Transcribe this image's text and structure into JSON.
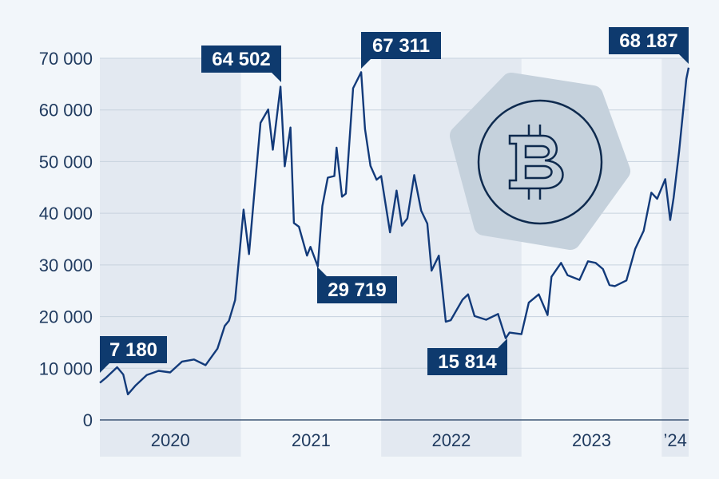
{
  "chart_data": {
    "type": "line",
    "title": "",
    "xlabel": "",
    "ylabel": "",
    "ylim": [
      0,
      70000
    ],
    "yticks": [
      0,
      10000,
      20000,
      30000,
      40000,
      50000,
      60000,
      70000
    ],
    "ytick_labels": [
      "0",
      "10 000",
      "20 000",
      "30 000",
      "40 000",
      "50 000",
      "60 000",
      "70 000"
    ],
    "xlim": [
      "2019-12-31",
      "2024-03-11"
    ],
    "year_labels": [
      "2020",
      "2021",
      "2022",
      "2023",
      "’24"
    ],
    "grid": true,
    "alternating_year_shading": true,
    "colors": {
      "line": "#123a7a",
      "callout": "#0e3a6e",
      "shade": "#e3e9f1",
      "gridline": "#c7d2de",
      "text": "#1f3a5f",
      "badge": "#c5d1dc"
    },
    "series": [
      {
        "x": [
          "2019-12-31",
          "2020-01-15",
          "2020-02-14",
          "2020-03-01",
          "2020-03-13",
          "2020-04-01",
          "2020-05-01",
          "2020-06-01",
          "2020-07-01",
          "2020-08-01",
          "2020-09-01",
          "2020-10-01",
          "2020-11-01",
          "2020-11-20",
          "2020-12-01",
          "2020-12-17",
          "2021-01-08",
          "2021-01-22",
          "2021-02-08",
          "2021-02-21",
          "2021-03-13",
          "2021-03-25",
          "2021-04-14",
          "2021-04-25",
          "2021-05-10",
          "2021-05-19",
          "2021-06-01",
          "2021-06-22",
          "2021-07-01",
          "2021-07-20",
          "2021-08-01",
          "2021-08-15",
          "2021-09-01",
          "2021-09-07",
          "2021-09-21",
          "2021-10-01",
          "2021-10-20",
          "2021-11-10",
          "2021-11-20",
          "2021-12-04",
          "2021-12-20",
          "2022-01-01",
          "2022-01-24",
          "2022-02-10",
          "2022-02-24",
          "2022-03-10",
          "2022-03-28",
          "2022-04-15",
          "2022-05-01",
          "2022-05-12",
          "2022-05-31",
          "2022-06-18",
          "2022-07-01",
          "2022-08-01",
          "2022-08-15",
          "2022-09-01",
          "2022-10-01",
          "2022-11-01",
          "2022-11-21",
          "2022-12-01",
          "2023-01-01",
          "2023-01-20",
          "2023-02-15",
          "2023-03-10",
          "2023-03-20",
          "2023-04-14",
          "2023-05-01",
          "2023-06-01",
          "2023-06-23",
          "2023-07-13",
          "2023-08-01",
          "2023-08-18",
          "2023-09-01",
          "2023-10-01",
          "2023-10-24",
          "2023-11-15",
          "2023-12-05",
          "2023-12-20",
          "2024-01-10",
          "2024-01-23",
          "2024-02-01",
          "2024-02-15",
          "2024-02-28",
          "2024-03-05",
          "2024-03-11"
        ],
        "y": [
          7180,
          8100,
          10200,
          8800,
          4950,
          6600,
          8700,
          9500,
          9200,
          11300,
          11700,
          10600,
          13800,
          18200,
          19200,
          23200,
          40700,
          32100,
          46500,
          57500,
          60100,
          52300,
          64502,
          49100,
          56600,
          38100,
          37400,
          31800,
          33500,
          29719,
          41400,
          46900,
          47200,
          52700,
          43200,
          43800,
          64200,
          67311,
          56300,
          49200,
          46500,
          47200,
          36300,
          44400,
          37600,
          39000,
          47400,
          40500,
          38000,
          28900,
          31800,
          19000,
          19300,
          23300,
          24300,
          20100,
          19400,
          20500,
          15814,
          16900,
          16600,
          22700,
          24300,
          20300,
          27700,
          30400,
          28000,
          27100,
          30700,
          30400,
          29200,
          26100,
          25900,
          27000,
          33100,
          36600,
          44000,
          42800,
          46600,
          38700,
          43000,
          51900,
          61500,
          66000,
          68187
        ]
      }
    ],
    "annotations": [
      {
        "label": "7 180",
        "x": "2019-12-31",
        "y": 7180
      },
      {
        "label": "64 502",
        "x": "2021-04-14",
        "y": 64502
      },
      {
        "label": "29 719",
        "x": "2021-07-20",
        "y": 29719
      },
      {
        "label": "67 311",
        "x": "2021-11-10",
        "y": 67311
      },
      {
        "label": "15 814",
        "x": "2022-11-21",
        "y": 15814
      },
      {
        "label": "68 187",
        "x": "2024-03-11",
        "y": 68187
      }
    ]
  }
}
